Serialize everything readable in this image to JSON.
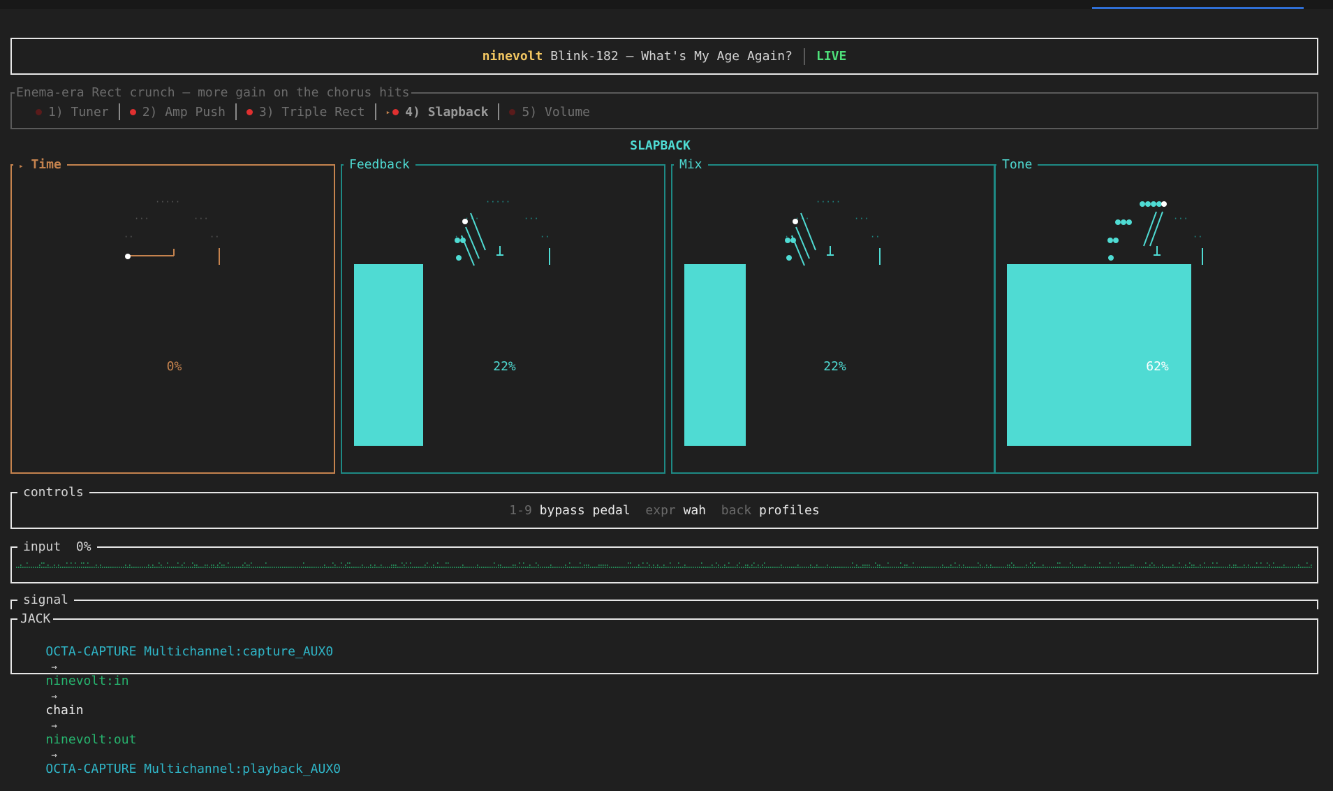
{
  "header": {
    "app_name": "ninevolt",
    "song": "Blink-182 — What's My Age Again?",
    "status": "LIVE"
  },
  "preset": {
    "description": "Enema-era Rect crunch — more gain on the chorus hits",
    "pedals": [
      {
        "label": "1) Tuner",
        "dot_color": "#5a1b1b",
        "selected": false
      },
      {
        "label": "2) Amp Push",
        "dot_color": "#e03030",
        "selected": false
      },
      {
        "label": "3) Triple Rect",
        "dot_color": "#e03030",
        "selected": false
      },
      {
        "label": "4) Slapback",
        "dot_color": "#e03030",
        "selected": true
      },
      {
        "label": "5) Volume",
        "dot_color": "#5a1b1b",
        "selected": false
      }
    ]
  },
  "effect": {
    "name": "SLAPBACK",
    "knobs": [
      {
        "label": "Time",
        "percent_text": "0%",
        "value": 0,
        "active": true,
        "marker": "▸"
      },
      {
        "label": "Feedback",
        "percent_text": "22%",
        "value": 22,
        "active": false
      },
      {
        "label": "Mix",
        "percent_text": "22%",
        "value": 22,
        "active": false
      },
      {
        "label": "Tone",
        "percent_text": "62%",
        "value": 62,
        "active": false
      }
    ]
  },
  "controls": {
    "title": "controls",
    "items": [
      {
        "key": "1-9",
        "action": "bypass pedal"
      },
      {
        "key": "expr",
        "action": "wah"
      },
      {
        "key": "back",
        "action": "profiles"
      }
    ]
  },
  "input": {
    "title": "input",
    "level_text": "0%",
    "level": 0
  },
  "signal": {
    "title": "signal",
    "jack_title": "JACK",
    "route": {
      "source": "OCTA-CAPTURE Multichannel:capture_AUX0",
      "app_in": "ninevolt:in",
      "chain": "chain",
      "app_out": "ninevolt:out",
      "sink": "OCTA-CAPTURE Multichannel:playback_AUX0",
      "arrow": "→"
    }
  },
  "colors": {
    "accent_cyan": "#4fdbd3",
    "active_orange": "#c5834e",
    "live_green": "#4ee07a",
    "app_yellow": "#f2c661"
  }
}
